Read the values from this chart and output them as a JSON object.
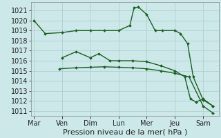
{
  "xlabel": "Pression niveau de la mer( hPa )",
  "bg_color": "#cce8e8",
  "grid_color": "#aacccc",
  "line_color": "#1a6020",
  "ylim": [
    1010.5,
    1021.8
  ],
  "yticks": [
    1011,
    1012,
    1013,
    1014,
    1015,
    1016,
    1017,
    1018,
    1019,
    1020,
    1021
  ],
  "x_labels": [
    "Mar",
    "Ven",
    "Dim",
    "Lun",
    "Mer",
    "Jeu",
    "Sam"
  ],
  "x_positions": [
    0,
    1,
    2,
    3,
    4,
    5,
    6
  ],
  "xlim": [
    -0.1,
    6.55
  ],
  "line1_x": [
    0,
    0.4,
    1.0,
    1.5,
    2.0,
    2.5,
    3.0,
    3.4,
    3.55,
    3.7,
    4.0,
    4.3,
    4.55,
    5.0,
    5.2,
    5.45,
    5.65,
    6.0,
    6.35
  ],
  "line1_y": [
    1020.0,
    1018.7,
    1018.8,
    1019.0,
    1019.0,
    1019.0,
    1019.0,
    1019.5,
    1021.25,
    1021.35,
    1020.6,
    1019.0,
    1019.0,
    1019.0,
    1018.7,
    1017.7,
    1014.4,
    1012.1,
    1011.5
  ],
  "line2_x": [
    1.0,
    1.5,
    2.0,
    2.3,
    2.7,
    3.0,
    3.5,
    4.0,
    4.5,
    5.0,
    5.35,
    5.55,
    5.75,
    6.0,
    6.35
  ],
  "line2_y": [
    1016.3,
    1016.9,
    1016.3,
    1016.7,
    1016.0,
    1016.0,
    1016.0,
    1015.9,
    1015.5,
    1015.0,
    1014.4,
    1012.2,
    1011.9,
    1012.2,
    1011.5
  ],
  "line3_x": [
    0.9,
    1.5,
    2.0,
    2.5,
    3.0,
    3.5,
    4.0,
    4.5,
    5.0,
    5.5,
    6.0,
    6.35
  ],
  "line3_y": [
    1015.2,
    1015.3,
    1015.35,
    1015.4,
    1015.35,
    1015.3,
    1015.2,
    1015.0,
    1014.75,
    1014.4,
    1011.5,
    1010.8
  ],
  "font_size": 7,
  "marker": "D",
  "marker_size": 2.0,
  "line_width": 1.0
}
